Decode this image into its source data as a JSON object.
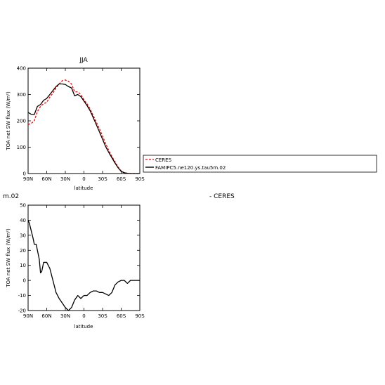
{
  "chart_data": [
    {
      "type": "line",
      "title": "JJA",
      "xlabel": "latitude",
      "ylabel": "TOA net SW flux (W/m²)",
      "xlim": [
        90,
        -90
      ],
      "ylim": [
        0,
        400
      ],
      "xticks": [
        90,
        60,
        30,
        0,
        -30,
        -60,
        -90
      ],
      "xtick_labels": [
        "90N",
        "60N",
        "30N",
        "0",
        "30S",
        "60S",
        "90S"
      ],
      "yticks": [
        0,
        100,
        200,
        300,
        400
      ],
      "ytick_labels": [
        "0",
        "100",
        "200",
        "300",
        "400"
      ],
      "legend_placement": "right, outside",
      "series": [
        {
          "name": "CERES",
          "color": "#ff0000",
          "style": "dashed",
          "x": [
            90,
            85,
            80,
            75,
            70,
            65,
            60,
            55,
            50,
            45,
            40,
            35,
            30,
            25,
            20,
            15,
            10,
            5,
            0,
            -5,
            -10,
            -15,
            -20,
            -25,
            -30,
            -35,
            -40,
            -45,
            -50,
            -55,
            -60,
            -65,
            -70,
            -75,
            -80,
            -85,
            -90
          ],
          "y": [
            186,
            190,
            200,
            235,
            255,
            265,
            270,
            290,
            305,
            325,
            340,
            352,
            355,
            350,
            340,
            310,
            310,
            300,
            280,
            265,
            245,
            220,
            195,
            170,
            142,
            113,
            88,
            65,
            45,
            25,
            10,
            3,
            1,
            0,
            0,
            0,
            0
          ]
        },
        {
          "name": "FAMIPC5.ne120.ys.tau5m.02",
          "color": "#000000",
          "style": "solid",
          "x": [
            90,
            85,
            80,
            75,
            70,
            65,
            60,
            55,
            50,
            45,
            40,
            35,
            30,
            25,
            20,
            15,
            10,
            5,
            0,
            -5,
            -10,
            -15,
            -20,
            -25,
            -30,
            -35,
            -40,
            -45,
            -50,
            -55,
            -60,
            -65,
            -70,
            -75,
            -80,
            -85,
            -90
          ],
          "y": [
            232,
            225,
            224,
            255,
            262,
            278,
            285,
            300,
            315,
            330,
            340,
            340,
            338,
            330,
            325,
            295,
            300,
            292,
            275,
            258,
            238,
            212,
            185,
            158,
            130,
            102,
            80,
            60,
            40,
            22,
            8,
            3,
            1,
            0,
            0,
            0,
            0
          ]
        }
      ],
      "legend": {
        "entries": [
          "CERES",
          "FAMIPC5.ne120.ys.tau5m.02"
        ]
      }
    },
    {
      "type": "line",
      "title": "m.02",
      "title_secondary": "- CERES",
      "xlabel": "latitude",
      "ylabel": "TOA net SW flux (W/m²)",
      "xlim": [
        90,
        -90
      ],
      "ylim": [
        -20,
        50
      ],
      "xticks": [
        90,
        60,
        30,
        0,
        -30,
        -60,
        -90
      ],
      "xtick_labels": [
        "90N",
        "60N",
        "30N",
        "0",
        "30S",
        "60S",
        "90S"
      ],
      "yticks": [
        -20,
        -10,
        0,
        10,
        20,
        30,
        40,
        50
      ],
      "ytick_labels": [
        "-20",
        "-10",
        "0",
        "10",
        "20",
        "30",
        "40",
        "50"
      ],
      "series": [
        {
          "name": "",
          "color": "#000000",
          "style": "solid",
          "x": [
            90,
            88,
            85,
            82,
            80,
            77,
            75,
            72,
            70,
            68,
            65,
            62,
            60,
            55,
            50,
            45,
            40,
            35,
            30,
            25,
            20,
            15,
            10,
            5,
            0,
            -5,
            -10,
            -15,
            -20,
            -25,
            -30,
            -35,
            -40,
            -45,
            -50,
            -55,
            -60,
            -65,
            -70,
            -75,
            -80,
            -85,
            -90
          ],
          "y": [
            40,
            38,
            33,
            28,
            24,
            24,
            20,
            14,
            5,
            6,
            12,
            12,
            12,
            8,
            0,
            -8,
            -12,
            -15,
            -18,
            -20,
            -18,
            -13,
            -10,
            -12,
            -10,
            -10,
            -8,
            -7,
            -7,
            -8,
            -8,
            -9,
            -10,
            -8,
            -3,
            -1,
            0,
            0,
            -2,
            0,
            0,
            0,
            0
          ]
        }
      ]
    }
  ]
}
